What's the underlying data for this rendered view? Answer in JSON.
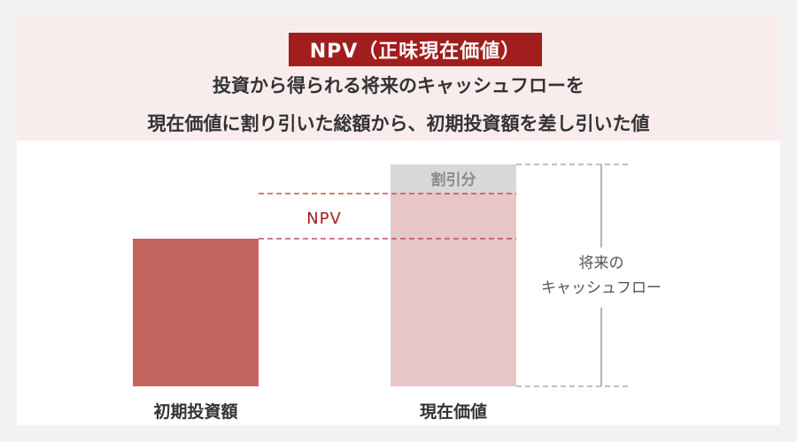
{
  "header": {
    "title": "NPV（正味現在価値）",
    "subtitle_line1": "投資から得られる将来のキャッシュフローを",
    "subtitle_line2": "現在価値に割り引いた総額から、初期投資額を差し引いた値"
  },
  "diagram": {
    "npv_label": "NPV",
    "discount_label": "割引分",
    "future_cf_line1": "将来の",
    "future_cf_line2": "キャッシュフロー",
    "initial_investment_label": "初期投資額",
    "present_value_label": "現在価値",
    "colors": {
      "accent": "#a21d1d",
      "initial_bar": "#c46461",
      "present_value_bar": "#e8c6c8",
      "discount_segment": "#d8d8d8",
      "npv_line": "#c0504d"
    }
  }
}
